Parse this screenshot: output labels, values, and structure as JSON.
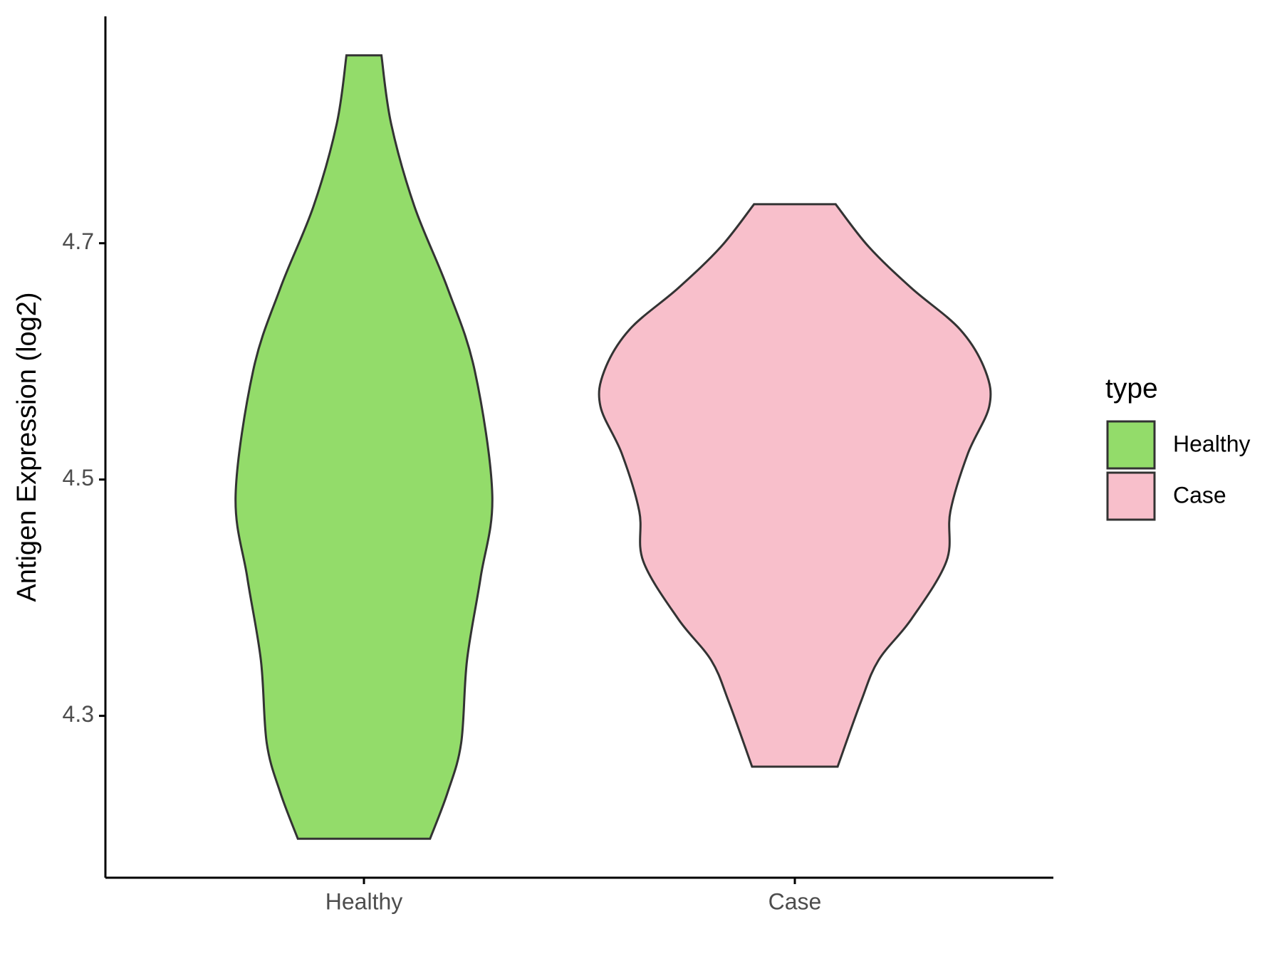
{
  "chart_data": {
    "type": "violin",
    "ylabel": "Antigen Expression (log2)",
    "categories": [
      "Healthy",
      "Case"
    ],
    "ylim": [
      4.163,
      4.892
    ],
    "yticks": [
      4.3,
      4.5,
      4.7
    ],
    "legend_title": "type",
    "legend_position": "right",
    "series": [
      {
        "name": "Healthy",
        "color": "#93dc6a",
        "y": [
          4.859,
          4.801,
          4.731,
          4.662,
          4.592,
          4.487,
          4.417,
          4.347,
          4.277,
          4.235,
          4.196
        ],
        "density": [
          0.09,
          0.14,
          0.26,
          0.43,
          0.57,
          0.66,
          0.6,
          0.53,
          0.5,
          0.43,
          0.34
        ]
      },
      {
        "name": "Case",
        "color": "#f8bfcb",
        "y": [
          4.733,
          4.697,
          4.662,
          4.627,
          4.592,
          4.562,
          4.522,
          4.473,
          4.431,
          4.382,
          4.347,
          4.312,
          4.257
        ],
        "density": [
          0.21,
          0.38,
          0.6,
          0.85,
          0.98,
          1,
          0.89,
          0.8,
          0.78,
          0.6,
          0.43,
          0.34,
          0.22
        ]
      }
    ]
  }
}
